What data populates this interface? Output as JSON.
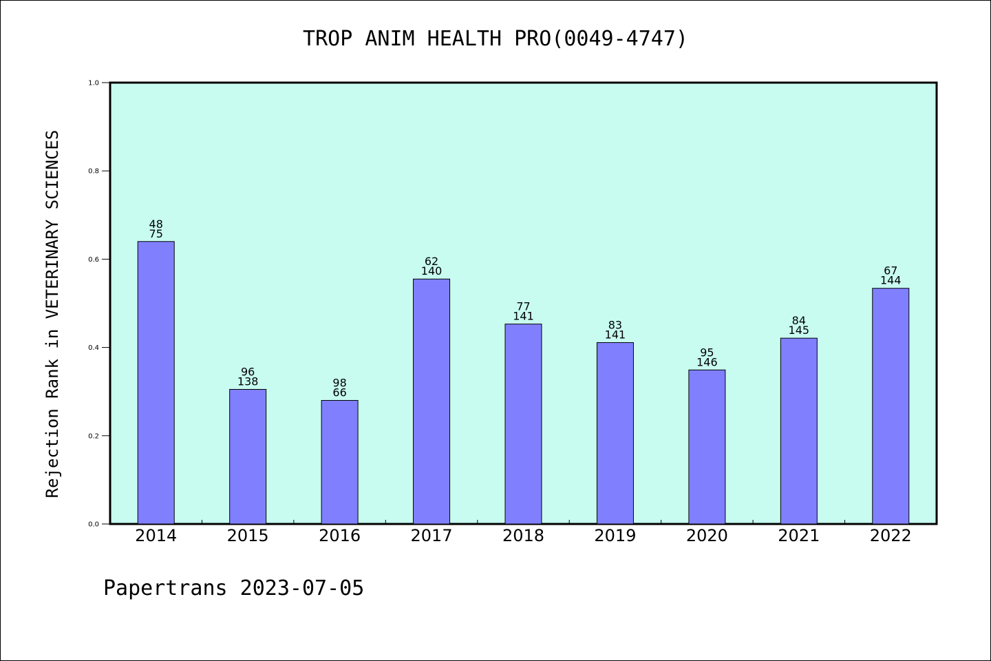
{
  "chart_data": {
    "type": "bar",
    "title": "TROP ANIM HEALTH PRO(0049-4747)",
    "ylabel": "Rejection Rank in VETERINARY SCIENCES",
    "xlabel": "",
    "ylim": [
      0,
      1.0
    ],
    "yticks": [
      "0.0",
      "0.2",
      "0.4",
      "0.6",
      "0.8",
      "1.0"
    ],
    "categories": [
      "2014",
      "2015",
      "2016",
      "2017",
      "2018",
      "2019",
      "2020",
      "2021",
      "2022"
    ],
    "values": [
      0.64,
      0.305,
      0.28,
      0.555,
      0.453,
      0.411,
      0.349,
      0.421,
      0.534
    ],
    "labels_top": [
      "48",
      "96",
      "98",
      "62",
      "77",
      "83",
      "95",
      "84",
      "67"
    ],
    "labels_bottom": [
      "75",
      "138",
      "66",
      "140",
      "141",
      "141",
      "146",
      "145",
      "144"
    ],
    "grid": false,
    "colors": {
      "bar": "#8080ff",
      "plot_bg": "#c8fcf0",
      "axis": "#000000"
    }
  },
  "footer": "Papertrans 2023-07-05"
}
